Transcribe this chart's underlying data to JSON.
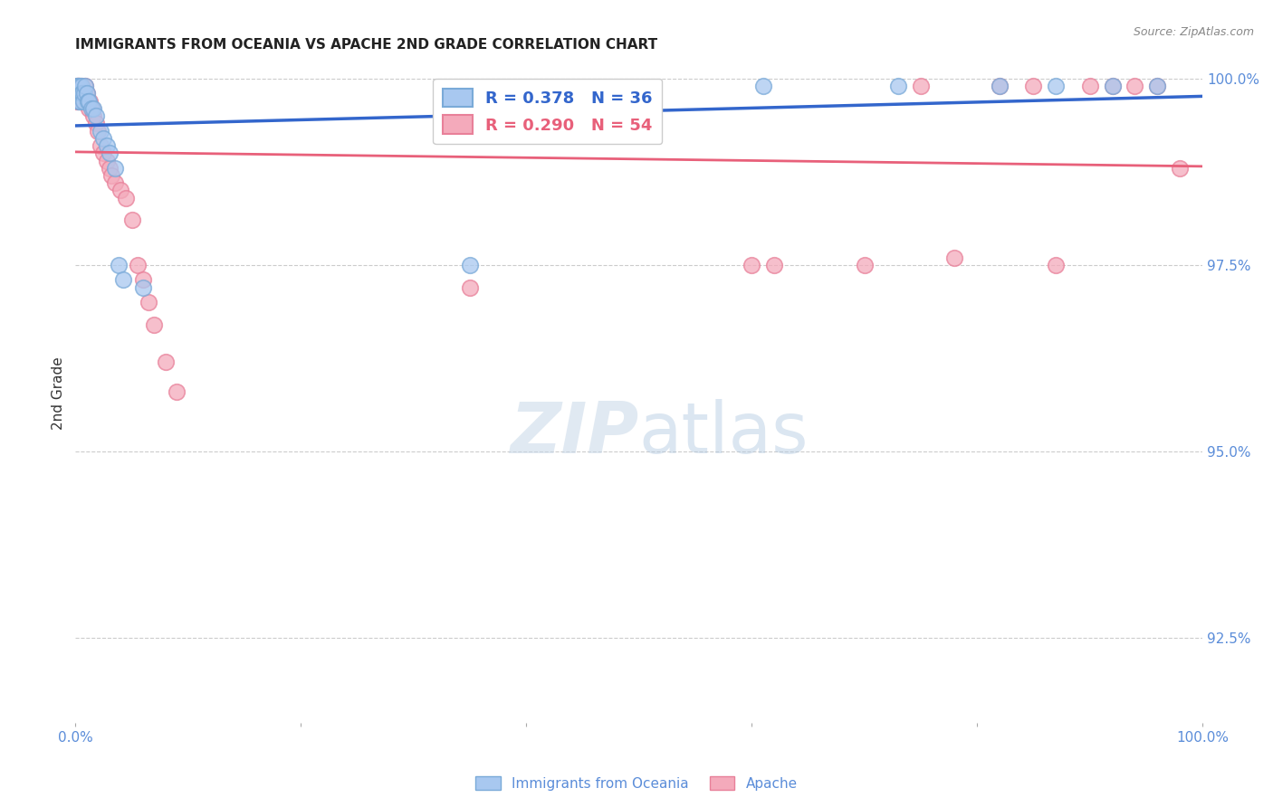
{
  "title": "IMMIGRANTS FROM OCEANIA VS APACHE 2ND GRADE CORRELATION CHART",
  "source": "Source: ZipAtlas.com",
  "ylabel": "2nd Grade",
  "xlim": [
    0.0,
    1.0
  ],
  "ylim": [
    0.9135,
    1.002
  ],
  "yticks": [
    0.925,
    0.95,
    0.975,
    1.0
  ],
  "ytick_labels": [
    "92.5%",
    "95.0%",
    "97.5%",
    "100.0%"
  ],
  "xticks": [
    0.0,
    0.2,
    0.4,
    0.6,
    0.8,
    1.0
  ],
  "xtick_labels": [
    "0.0%",
    "",
    "",
    "",
    "",
    "100.0%"
  ],
  "legend_r1": "R = 0.378",
  "legend_n1": "N = 36",
  "legend_r2": "R = 0.290",
  "legend_n2": "N = 54",
  "blue_color": "#A8C8F0",
  "pink_color": "#F4AABB",
  "blue_edge_color": "#7AAAD8",
  "pink_edge_color": "#E88099",
  "blue_line_color": "#3366CC",
  "pink_line_color": "#E8607A",
  "blue_scatter_x": [
    0.001,
    0.001,
    0.002,
    0.002,
    0.003,
    0.003,
    0.003,
    0.004,
    0.004,
    0.005,
    0.005,
    0.006,
    0.007,
    0.008,
    0.009,
    0.01,
    0.011,
    0.012,
    0.014,
    0.016,
    0.018,
    0.022,
    0.025,
    0.028,
    0.03,
    0.035,
    0.038,
    0.042,
    0.06,
    0.35,
    0.61,
    0.73,
    0.82,
    0.87,
    0.92,
    0.96
  ],
  "blue_scatter_y": [
    0.999,
    0.998,
    0.999,
    0.998,
    0.999,
    0.998,
    0.997,
    0.999,
    0.997,
    0.999,
    0.998,
    0.998,
    0.997,
    0.998,
    0.999,
    0.998,
    0.997,
    0.997,
    0.996,
    0.996,
    0.995,
    0.993,
    0.992,
    0.991,
    0.99,
    0.988,
    0.975,
    0.973,
    0.972,
    0.975,
    0.999,
    0.999,
    0.999,
    0.999,
    0.999,
    0.999
  ],
  "pink_scatter_x": [
    0.001,
    0.001,
    0.001,
    0.002,
    0.002,
    0.002,
    0.003,
    0.003,
    0.004,
    0.004,
    0.005,
    0.005,
    0.006,
    0.006,
    0.007,
    0.008,
    0.009,
    0.01,
    0.011,
    0.012,
    0.013,
    0.015,
    0.016,
    0.018,
    0.02,
    0.022,
    0.025,
    0.028,
    0.03,
    0.032,
    0.035,
    0.04,
    0.045,
    0.05,
    0.055,
    0.06,
    0.065,
    0.07,
    0.08,
    0.09,
    0.35,
    0.6,
    0.62,
    0.7,
    0.75,
    0.78,
    0.82,
    0.85,
    0.87,
    0.9,
    0.92,
    0.94,
    0.96,
    0.98
  ],
  "pink_scatter_y": [
    0.999,
    0.998,
    0.997,
    0.999,
    0.998,
    0.997,
    0.999,
    0.998,
    0.998,
    0.997,
    0.999,
    0.997,
    0.998,
    0.997,
    0.998,
    0.997,
    0.999,
    0.998,
    0.997,
    0.996,
    0.997,
    0.996,
    0.995,
    0.994,
    0.993,
    0.991,
    0.99,
    0.989,
    0.988,
    0.987,
    0.986,
    0.985,
    0.984,
    0.981,
    0.975,
    0.973,
    0.97,
    0.967,
    0.962,
    0.958,
    0.972,
    0.975,
    0.975,
    0.975,
    0.999,
    0.976,
    0.999,
    0.999,
    0.975,
    0.999,
    0.999,
    0.999,
    0.999,
    0.988
  ],
  "watermark_zip": "ZIP",
  "watermark_atlas": "atlas",
  "title_fontsize": 11,
  "tick_label_color": "#5B8DD9",
  "background_color": "#FFFFFF"
}
